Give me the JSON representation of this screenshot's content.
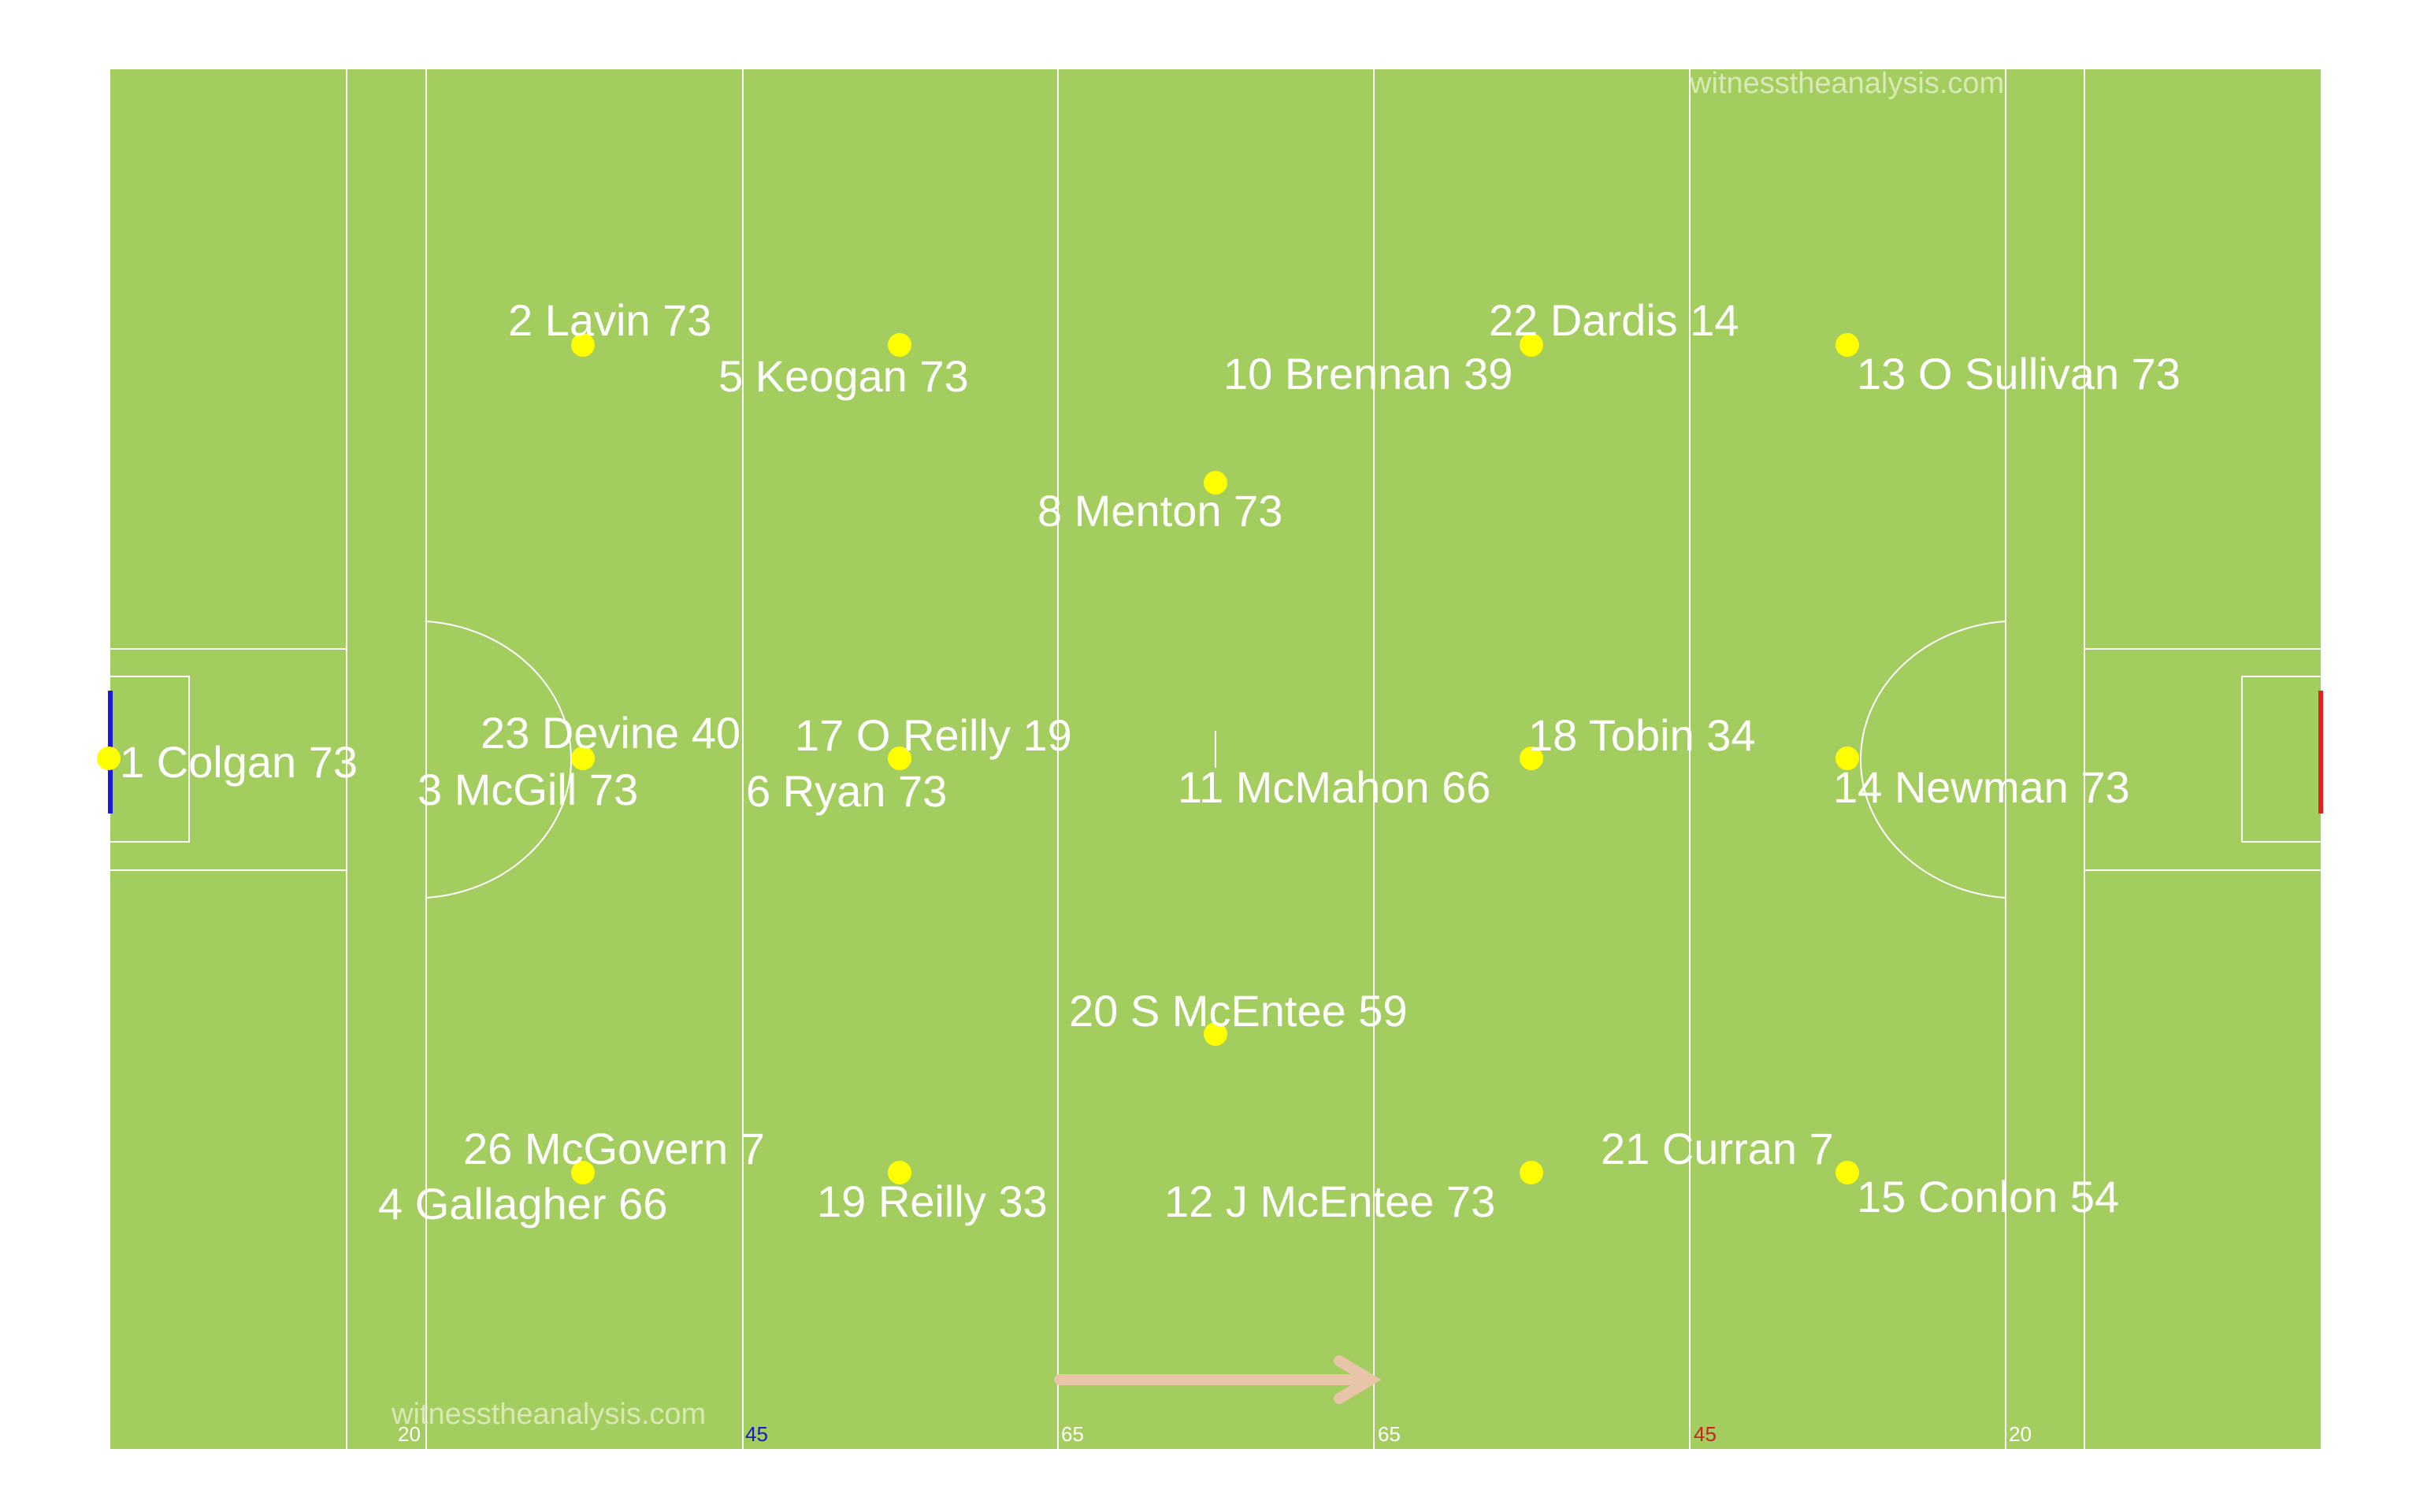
{
  "pitch": {
    "grass_color": "#a3cd5f",
    "line_color": "#ffffff",
    "left_goal_color": "#1a1adb",
    "right_goal_color": "#dd2222",
    "player_dot_color": "#ffff00",
    "arrow_color": "#e8c4a8"
  },
  "watermarks": {
    "top": "witnesstheanalysis.com",
    "bottom": "witnesstheanalysis.com",
    "color": "#d9e8b4"
  },
  "yard_markers": [
    {
      "label": "20",
      "color": "#ffffff"
    },
    {
      "label": "45",
      "color": "#1a1acc"
    },
    {
      "label": "65",
      "color": "#ffffff"
    },
    {
      "label": "65",
      "color": "#ffffff"
    },
    {
      "label": "45",
      "color": "#cc2222"
    },
    {
      "label": "20",
      "color": "#ffffff"
    }
  ],
  "players": [
    {
      "label": "1 Colgan 73"
    },
    {
      "label": "2 Lavin 73"
    },
    {
      "label": "3 McGill 73"
    },
    {
      "label": "4 Gallagher 66"
    },
    {
      "label": "5 Keogan 73"
    },
    {
      "label": "6 Ryan 73"
    },
    {
      "label": "19 Reilly 33"
    },
    {
      "label": "8 Menton 73"
    },
    {
      "label": "20 S McEntee 59"
    },
    {
      "label": "10 Brennan 39"
    },
    {
      "label": "11 McMahon 66"
    },
    {
      "label": "12 J McEntee 73"
    },
    {
      "label": "13 O Sullivan 73"
    },
    {
      "label": "14 Newman  73"
    },
    {
      "label": "15 Conlon 54"
    },
    {
      "label": "17 O Reilly 19"
    },
    {
      "label": "18 Tobin 34"
    },
    {
      "label": "21 Curran 7"
    },
    {
      "label": "22 Dardis 14"
    },
    {
      "label": "23 Devine 40"
    },
    {
      "label": "26 McGovern 7"
    }
  ]
}
